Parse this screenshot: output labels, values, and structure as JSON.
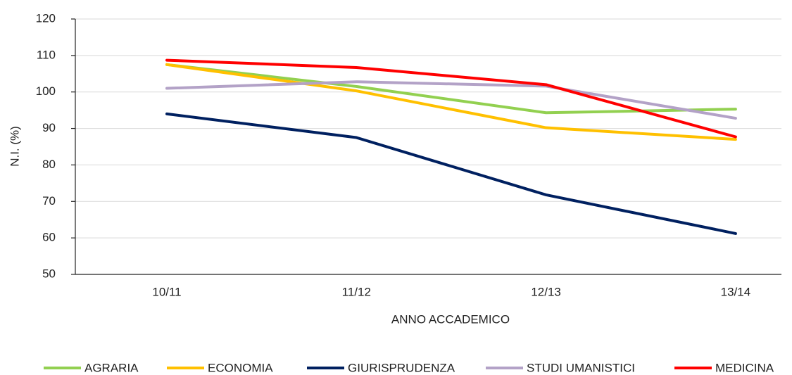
{
  "chart_data": {
    "type": "line",
    "categories": [
      "10/11",
      "11/12",
      "12/13",
      "13/14"
    ],
    "series": [
      {
        "name": "AGRARIA",
        "color": "#92d050",
        "values": [
          107.5,
          101.5,
          94.3,
          95.3
        ]
      },
      {
        "name": "ECONOMIA",
        "color": "#ffc000",
        "values": [
          107.5,
          100.3,
          90.2,
          87
        ]
      },
      {
        "name": "GIURISPRUDENZA",
        "color": "#002060",
        "values": [
          94,
          87.5,
          71.8,
          61.2
        ]
      },
      {
        "name": "STUDI UMANISTICI",
        "color": "#b3a2c7",
        "values": [
          101,
          102.8,
          101.6,
          92.8
        ]
      },
      {
        "name": "MEDICINA",
        "color": "#ff0000",
        "values": [
          108.7,
          106.7,
          102,
          87.7
        ]
      }
    ],
    "xlabel": "ANNO ACCADEMICO",
    "ylabel": "N.I. (%)",
    "ylim": [
      50,
      120
    ],
    "yticks": [
      50,
      60,
      70,
      80,
      90,
      100,
      110,
      120
    ],
    "grid": true,
    "legend": "bottom"
  }
}
